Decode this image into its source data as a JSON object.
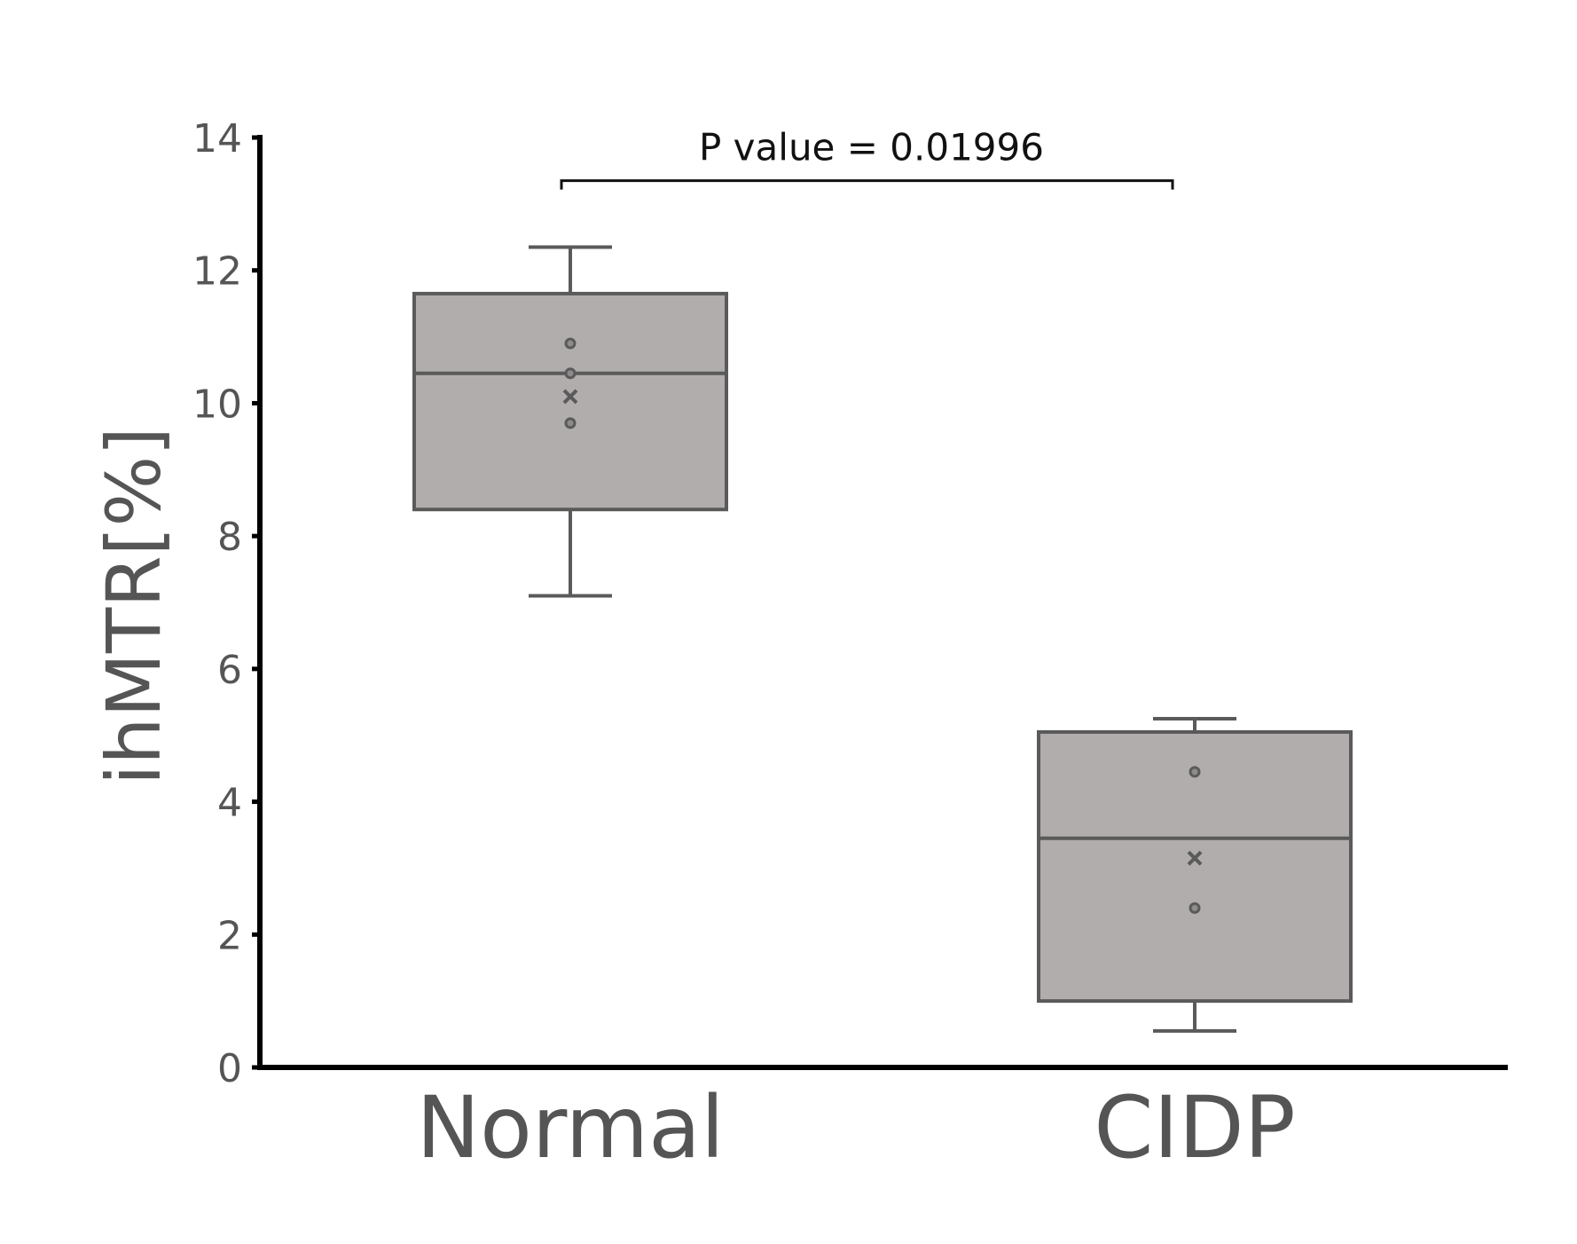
{
  "chart_data": {
    "type": "box",
    "categories": [
      "Normal",
      "CIDP"
    ],
    "ylabel": "ihMTR[%]",
    "xlabel": "",
    "ylim": [
      0,
      14
    ],
    "yticks": [
      0,
      2,
      4,
      6,
      8,
      10,
      12,
      14
    ],
    "grid": false,
    "boxes": [
      {
        "name": "Normal",
        "whisker_low": 7.1,
        "q1": 8.4,
        "median": 10.45,
        "q3": 11.65,
        "whisker_high": 12.35,
        "mean": 10.1,
        "points": [
          10.9,
          10.45,
          9.7
        ]
      },
      {
        "name": "CIDP",
        "whisker_low": 0.55,
        "q1": 1.0,
        "median": 3.45,
        "q3": 5.05,
        "whisker_high": 5.25,
        "mean": 3.15,
        "points": [
          4.45,
          2.4
        ]
      }
    ],
    "annotation": {
      "text": "P value = 0.01996",
      "from": "Normal",
      "to": "CIDP",
      "y": 13.35
    },
    "colors": {
      "box_fill": "#b0adac",
      "box_stroke": "#5a5a5a",
      "axis": "#000000",
      "text": "#555555"
    }
  }
}
